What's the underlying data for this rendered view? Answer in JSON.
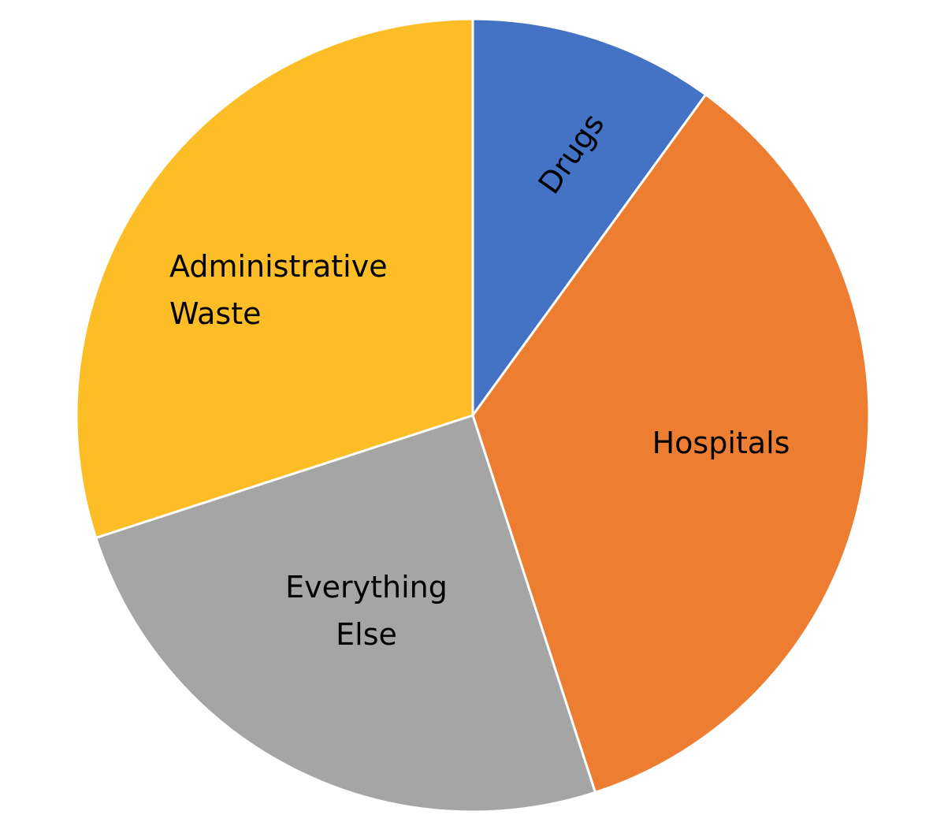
{
  "chart_data": {
    "type": "pie",
    "categories": [
      "Drugs",
      "Hospitals",
      "Everything Else",
      "Administrative Waste"
    ],
    "values": [
      10,
      35,
      25,
      30
    ],
    "colors": [
      "#4472c4",
      "#ed7d31",
      "#a5a5a5",
      "#fdbd27"
    ]
  }
}
